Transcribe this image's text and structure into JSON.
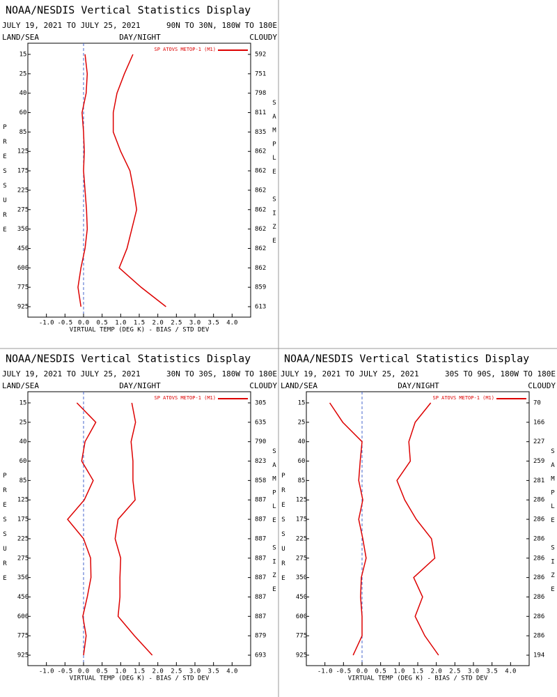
{
  "chart_data": [
    {
      "type": "line",
      "title": "NOAA/NESDIS Vertical Statistics Display",
      "subtitle": "JULY 19, 2021 TO JULY 25, 2021",
      "region": "90N TO 30N, 180W TO 180E",
      "labels": {
        "left": "LAND/SEA",
        "center": "DAY/NIGHT",
        "right": "CLOUDY"
      },
      "y_label": "PRESSURE",
      "y2_label": "SAMPLE SIZE",
      "x_label": "VIRTUAL TEMP (DEG K) - BIAS / STD DEV",
      "categories": [
        15,
        25,
        40,
        60,
        85,
        125,
        175,
        225,
        275,
        350,
        450,
        600,
        775,
        925
      ],
      "sample_size": [
        592,
        751,
        798,
        811,
        835,
        862,
        862,
        862,
        862,
        862,
        862,
        862,
        859,
        613
      ],
      "series": [
        {
          "name": "SP ATOVS METOP-1 (M1)",
          "color": "#dd0000",
          "values": [
            0.04,
            0.1,
            0.07,
            -0.04,
            0,
            0.02,
            0,
            0.04,
            0.08,
            0.1,
            0.04,
            -0.07,
            -0.15,
            -0.07
          ]
        },
        {
          "color": "#dd0000",
          "values": [
            1.33,
            1.1,
            0.9,
            0.8,
            0.8,
            1.0,
            1.25,
            1.35,
            1.43,
            1.3,
            1.17,
            0.96,
            1.55,
            2.22
          ]
        }
      ],
      "xlim": [
        -1.5,
        4.5
      ],
      "xticks": [
        {
          "value": -1,
          "label": "-1.0"
        },
        -0.5,
        {
          "value": 0,
          "label": "0.0"
        },
        0.5,
        {
          "value": 1,
          "label": "1.0"
        },
        1.5,
        {
          "value": 2,
          "label": "2.0"
        },
        2.5,
        {
          "value": 3,
          "label": "3.0"
        },
        3.5,
        {
          "value": 4,
          "label": "4.0"
        }
      ]
    },
    {
      "type": "line",
      "title": "NOAA/NESDIS Vertical Statistics Display",
      "subtitle": "JULY 19, 2021 TO JULY 25, 2021",
      "region": "30N TO 30S, 180W TO 180E",
      "labels": {
        "left": "LAND/SEA",
        "center": "DAY/NIGHT",
        "right": "CLOUDY"
      },
      "y_label": "PRESSURE",
      "y2_label": "SAMPLE SIZE",
      "x_label": "VIRTUAL TEMP (DEG K) - BIAS / STD DEV",
      "categories": [
        15,
        25,
        40,
        60,
        85,
        125,
        175,
        225,
        275,
        350,
        450,
        600,
        775,
        925
      ],
      "sample_size": [
        305,
        635,
        790,
        823,
        858,
        887,
        887,
        887,
        887,
        887,
        887,
        887,
        879,
        693
      ],
      "series": [
        {
          "name": "SP ATOVS METOP-1 (M1)",
          "color": "#dd0000",
          "values": [
            -0.18,
            0.33,
            0.04,
            -0.05,
            0.26,
            0.02,
            -0.43,
            0,
            0.19,
            0.2,
            0.1,
            -0.02,
            0.07,
            0
          ]
        },
        {
          "color": "#dd0000",
          "values": [
            1.3,
            1.4,
            1.28,
            1.33,
            1.33,
            1.39,
            0.93,
            0.85,
            1.0,
            0.98,
            0.98,
            0.93,
            1.37,
            1.85
          ]
        }
      ],
      "xlim": [
        -1.5,
        4.5
      ],
      "xticks": [
        {
          "value": -1,
          "label": "-1.0"
        },
        -0.5,
        {
          "value": 0,
          "label": "0.0"
        },
        0.5,
        {
          "value": 1,
          "label": "1.0"
        },
        1.5,
        {
          "value": 2,
          "label": "2.0"
        },
        2.5,
        {
          "value": 3,
          "label": "3.0"
        },
        3.5,
        {
          "value": 4,
          "label": "4.0"
        }
      ]
    },
    {
      "type": "line",
      "title": "NOAA/NESDIS Vertical Statistics Display",
      "subtitle": "JULY 19, 2021 TO JULY 25, 2021",
      "region": "30S TO 90S, 180W TO 180E",
      "labels": {
        "left": "LAND/SEA",
        "center": "DAY/NIGHT",
        "right": "CLOUDY"
      },
      "y_label": "PRESSURE",
      "y2_label": "SAMPLE SIZE",
      "x_label": "VIRTUAL TEMP (DEG K) - BIAS / STD DEV",
      "categories": [
        15,
        25,
        40,
        60,
        85,
        125,
        175,
        225,
        275,
        350,
        450,
        600,
        775,
        925
      ],
      "sample_size": [
        70,
        166,
        227,
        259,
        281,
        286,
        286,
        286,
        286,
        286,
        286,
        286,
        286,
        194
      ],
      "series": [
        {
          "name": "SP ATOVS METOP-1 (M1)",
          "color": "#dd0000",
          "values": [
            -0.87,
            -0.52,
            0,
            -0.05,
            -0.09,
            0.02,
            -0.09,
            0.02,
            0.11,
            -0.02,
            -0.04,
            0,
            0,
            -0.24
          ]
        },
        {
          "color": "#dd0000",
          "values": [
            1.85,
            1.43,
            1.26,
            1.3,
            0.94,
            1.15,
            1.46,
            1.87,
            1.96,
            1.39,
            1.63,
            1.43,
            1.69,
            2.06
          ]
        }
      ],
      "xlim": [
        -1.5,
        4.5
      ],
      "xticks": [
        {
          "value": -1,
          "label": "-1.0"
        },
        -0.5,
        {
          "value": 0,
          "label": "0.0"
        },
        0.5,
        {
          "value": 1,
          "label": "1.0"
        },
        1.5,
        {
          "value": 2,
          "label": "2.0"
        },
        2.5,
        {
          "value": 3,
          "label": "3.0"
        },
        3.5,
        {
          "value": 4,
          "label": "4.0"
        }
      ]
    }
  ]
}
